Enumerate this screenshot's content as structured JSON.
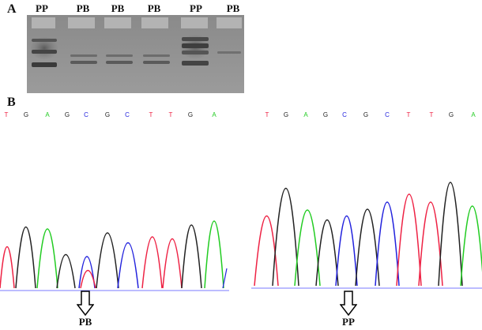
{
  "panels": {
    "a": "A",
    "b": "B"
  },
  "gel": {
    "lanes": [
      "PP",
      "PB",
      "PB",
      "PB",
      "PP",
      "PB"
    ]
  },
  "sequence_left": {
    "bases": [
      "T",
      "G",
      "A",
      "G",
      "C",
      "G",
      "C",
      "T",
      "T",
      "G",
      "A"
    ],
    "call": "PB"
  },
  "sequence_right": {
    "bases": [
      "T",
      "G",
      "A",
      "G",
      "C",
      "G",
      "C",
      "T",
      "T",
      "G",
      "A"
    ],
    "call": "PP"
  },
  "base_colors": {
    "A": "#22cc22",
    "C": "#2222dd",
    "G": "#222222",
    "T": "#ee2244"
  }
}
